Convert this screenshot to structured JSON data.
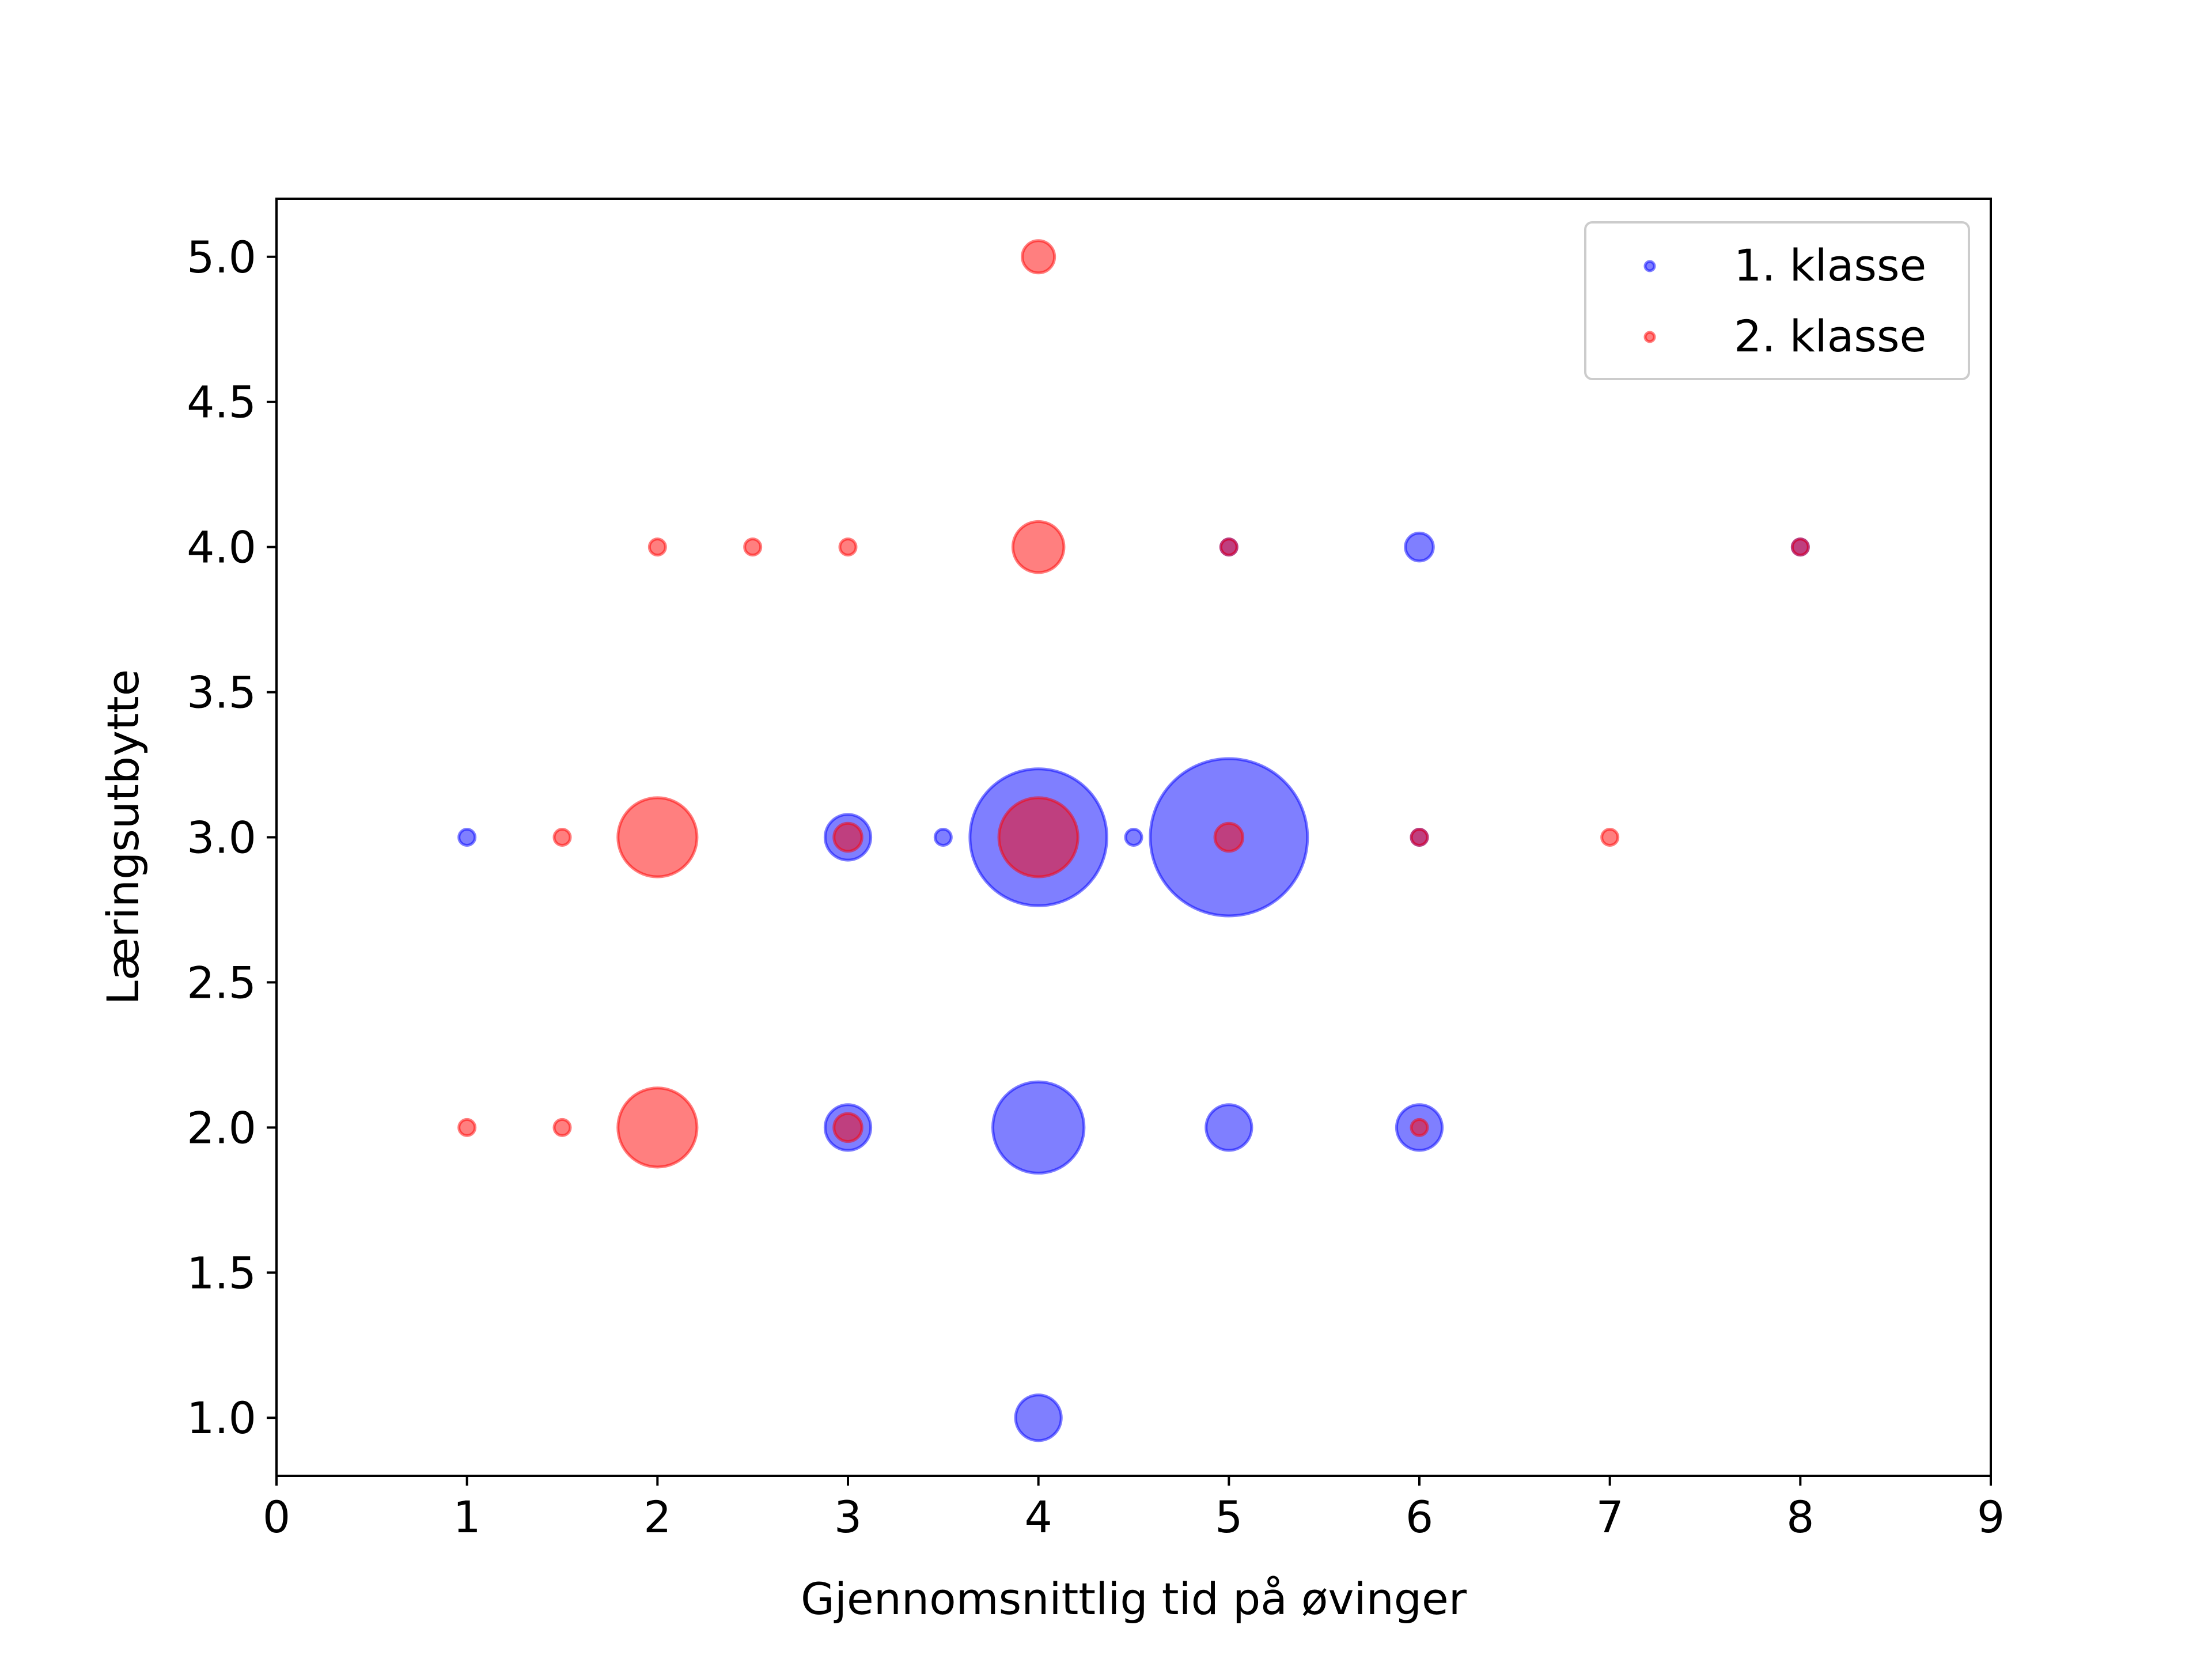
{
  "chart_data": {
    "type": "scatter",
    "xlabel": "Gjennomsnittlig tid på øvinger",
    "ylabel": "Læringsutbytte",
    "xlim": [
      0,
      9
    ],
    "ylim": [
      0.8,
      5.2
    ],
    "xticks": [
      0,
      1,
      2,
      3,
      4,
      5,
      6,
      7,
      8,
      9
    ],
    "xtick_labels": [
      "0",
      "1",
      "2",
      "3",
      "4",
      "5",
      "6",
      "7",
      "8",
      "9"
    ],
    "yticks": [
      1.0,
      1.5,
      2.0,
      2.5,
      3.0,
      3.5,
      4.0,
      4.5,
      5.0
    ],
    "ytick_labels": [
      "1.0",
      "1.5",
      "2.0",
      "2.5",
      "3.0",
      "3.5",
      "4.0",
      "4.5",
      "5.0"
    ],
    "grid": false,
    "legend_position": "top-right",
    "bubble_size_note": "marker area proportional to count of respondents",
    "series": [
      {
        "name": "1. klasse",
        "color": "#0000ff",
        "points": [
          {
            "x": 1,
            "y": 3,
            "count": 1
          },
          {
            "x": 3,
            "y": 3,
            "count": 8
          },
          {
            "x": 3.5,
            "y": 3,
            "count": 1
          },
          {
            "x": 4,
            "y": 3,
            "count": 72
          },
          {
            "x": 4.5,
            "y": 3,
            "count": 1
          },
          {
            "x": 5,
            "y": 3,
            "count": 95
          },
          {
            "x": 6,
            "y": 3,
            "count": 1
          },
          {
            "x": 3,
            "y": 2,
            "count": 8
          },
          {
            "x": 4,
            "y": 2,
            "count": 32
          },
          {
            "x": 5,
            "y": 2,
            "count": 8
          },
          {
            "x": 6,
            "y": 2,
            "count": 8
          },
          {
            "x": 4,
            "y": 1,
            "count": 8
          },
          {
            "x": 5,
            "y": 4,
            "count": 1
          },
          {
            "x": 6,
            "y": 4,
            "count": 3
          },
          {
            "x": 8,
            "y": 4,
            "count": 1
          }
        ]
      },
      {
        "name": "2. klasse",
        "color": "#ff0000",
        "points": [
          {
            "x": 4,
            "y": 5,
            "count": 4
          },
          {
            "x": 2,
            "y": 4,
            "count": 1
          },
          {
            "x": 2.5,
            "y": 4,
            "count": 1
          },
          {
            "x": 3,
            "y": 4,
            "count": 1
          },
          {
            "x": 4,
            "y": 4,
            "count": 10
          },
          {
            "x": 5,
            "y": 4,
            "count": 1
          },
          {
            "x": 8,
            "y": 4,
            "count": 1
          },
          {
            "x": 1.5,
            "y": 3,
            "count": 1
          },
          {
            "x": 2,
            "y": 3,
            "count": 24
          },
          {
            "x": 3,
            "y": 3,
            "count": 3
          },
          {
            "x": 4,
            "y": 3,
            "count": 24
          },
          {
            "x": 5,
            "y": 3,
            "count": 3
          },
          {
            "x": 6,
            "y": 3,
            "count": 1
          },
          {
            "x": 7,
            "y": 3,
            "count": 1
          },
          {
            "x": 1,
            "y": 2,
            "count": 1
          },
          {
            "x": 1.5,
            "y": 2,
            "count": 1
          },
          {
            "x": 2,
            "y": 2,
            "count": 24
          },
          {
            "x": 3,
            "y": 2,
            "count": 3
          },
          {
            "x": 6,
            "y": 2,
            "count": 1
          }
        ]
      }
    ]
  }
}
